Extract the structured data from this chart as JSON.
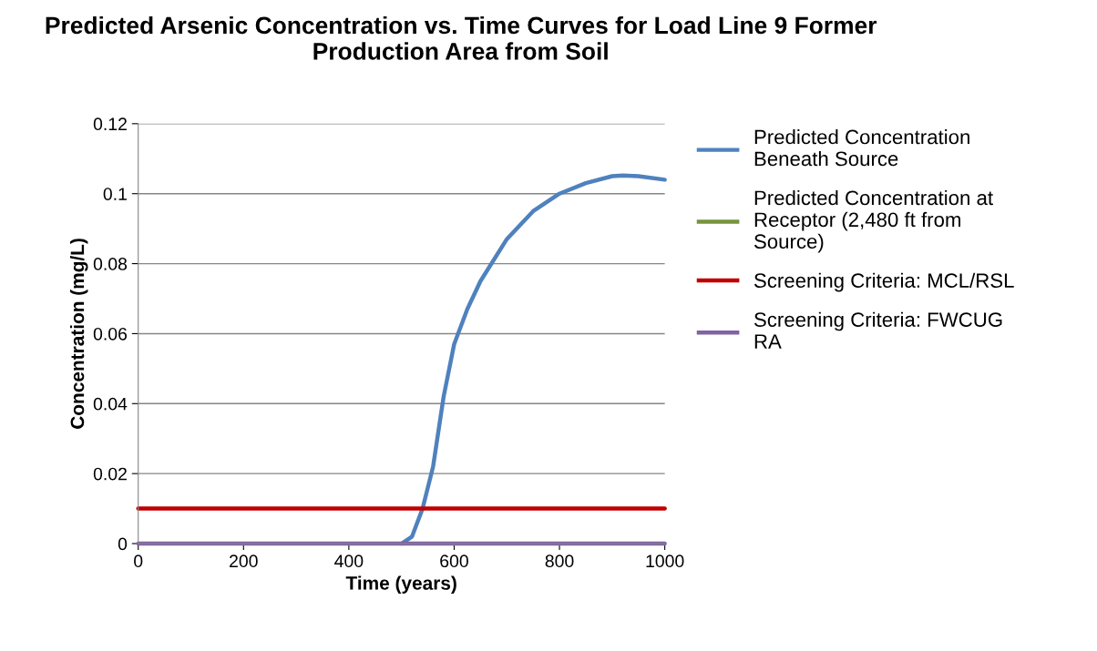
{
  "chart_data": {
    "type": "line",
    "title": "Predicted Arsenic Concentration vs. Time Curves for Load Line 9 Former Production Area from Soil",
    "xlabel": "Time (years)",
    "ylabel": "Concentration (mg/L)",
    "xlim": [
      0,
      1000
    ],
    "xticks": [
      0,
      200,
      400,
      600,
      800,
      1000
    ],
    "ylim": [
      0,
      0.12
    ],
    "yticks": [
      0,
      0.02,
      0.04,
      0.06,
      0.08,
      0.1,
      0.12
    ],
    "grid": "y",
    "legend": "right",
    "marker": "none",
    "line_style": "solid",
    "series": [
      {
        "name": "Predicted Concentration Beneath Source",
        "color": "#4f81bd",
        "x": [
          500,
          520,
          540,
          560,
          580,
          600,
          625,
          650,
          700,
          750,
          800,
          850,
          900,
          920,
          950,
          1000
        ],
        "values": [
          0,
          0.002,
          0.01,
          0.022,
          0.042,
          0.057,
          0.067,
          0.075,
          0.087,
          0.095,
          0.1,
          0.103,
          0.105,
          0.1052,
          0.105,
          0.104
        ]
      },
      {
        "name": "Predicted Concentration at Receptor (2,480 ft from Source)",
        "color": "#77933c"
      },
      {
        "name": "Screening Criteria: MCL/RSL",
        "color": "#c00000",
        "x": [
          0,
          1000
        ],
        "values": [
          0.01,
          0.01
        ]
      },
      {
        "name": "Screening Criteria: FWCUG RA",
        "color": "#8064a2",
        "x": [
          0,
          1000
        ],
        "values": [
          0,
          0
        ]
      }
    ]
  }
}
